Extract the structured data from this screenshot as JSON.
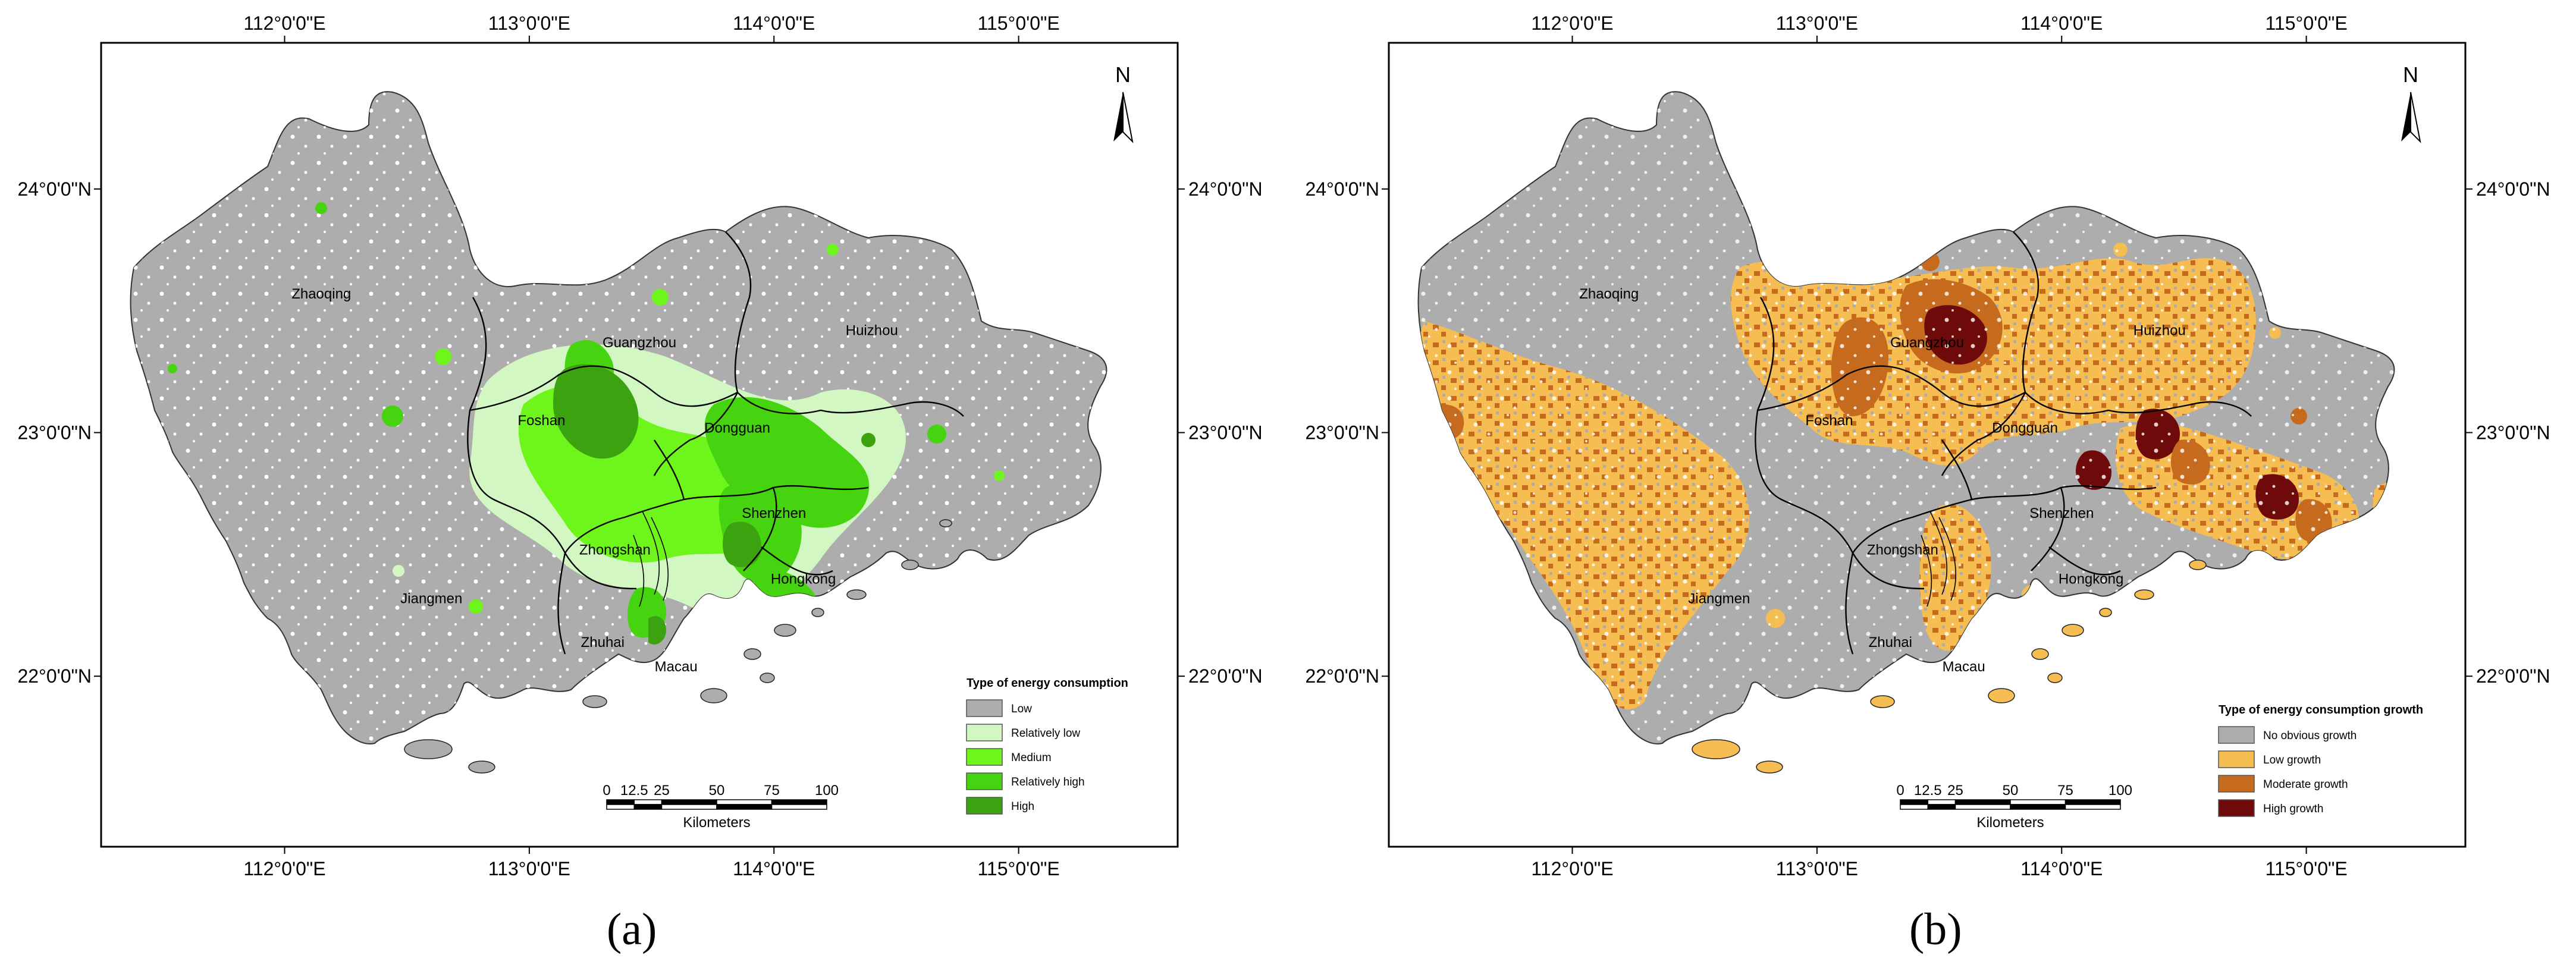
{
  "panels": [
    {
      "label": "(a)",
      "legend_title": "Type of energy consumption",
      "legend_items": [
        {
          "label": "Low",
          "color": "#adadad"
        },
        {
          "label": "Relatively low",
          "color": "#d3f7c3"
        },
        {
          "label": "Medium",
          "color": "#6ef51c"
        },
        {
          "label": "Relatively high",
          "color": "#45d40f"
        },
        {
          "label": "High",
          "color": "#3ba30f"
        }
      ],
      "cities": [
        {
          "name": "Zhaoqing",
          "lon": 112.15,
          "lat": 23.55
        },
        {
          "name": "Guangzhou",
          "lon": 113.45,
          "lat": 23.35
        },
        {
          "name": "Huizhou",
          "lon": 114.4,
          "lat": 23.4
        },
        {
          "name": "Foshan",
          "lon": 113.05,
          "lat": 23.03
        },
        {
          "name": "Dongguan",
          "lon": 113.85,
          "lat": 23.0
        },
        {
          "name": "Shenzhen",
          "lon": 114.0,
          "lat": 22.65
        },
        {
          "name": "Zhongshan",
          "lon": 113.35,
          "lat": 22.5
        },
        {
          "name": "Jiangmen",
          "lon": 112.6,
          "lat": 22.3
        },
        {
          "name": "Hongkong",
          "lon": 114.12,
          "lat": 22.38
        },
        {
          "name": "Zhuhai",
          "lon": 113.3,
          "lat": 22.12
        },
        {
          "name": "Macau",
          "lon": 113.6,
          "lat": 22.02
        }
      ]
    },
    {
      "label": "(b)",
      "legend_title": "Type of energy consumption growth",
      "legend_items": [
        {
          "label": "No obvious growth",
          "color": "#adadad"
        },
        {
          "label": "Low growth",
          "color": "#f5bd52"
        },
        {
          "label": "Moderate growth",
          "color": "#c66a1e"
        },
        {
          "label": "High growth",
          "color": "#6e0a0a"
        }
      ],
      "cities": [
        {
          "name": "Zhaoqing",
          "lon": 112.15,
          "lat": 23.55
        },
        {
          "name": "Guangzhou",
          "lon": 113.45,
          "lat": 23.35
        },
        {
          "name": "Huizhou",
          "lon": 114.4,
          "lat": 23.4
        },
        {
          "name": "Foshan",
          "lon": 113.05,
          "lat": 23.03
        },
        {
          "name": "Dongguan",
          "lon": 113.85,
          "lat": 23.0
        },
        {
          "name": "Shenzhen",
          "lon": 114.0,
          "lat": 22.65
        },
        {
          "name": "Zhongshan",
          "lon": 113.35,
          "lat": 22.5
        },
        {
          "name": "Jiangmen",
          "lon": 112.6,
          "lat": 22.3
        },
        {
          "name": "Hongkong",
          "lon": 114.12,
          "lat": 22.38
        },
        {
          "name": "Zhuhai",
          "lon": 113.3,
          "lat": 22.12
        },
        {
          "name": "Macau",
          "lon": 113.6,
          "lat": 22.02
        }
      ]
    }
  ],
  "axes": {
    "lon_ticks": [
      {
        "value": 112,
        "label": "112°0'0\"E"
      },
      {
        "value": 113,
        "label": "113°0'0\"E"
      },
      {
        "value": 114,
        "label": "114°0'0\"E"
      },
      {
        "value": 115,
        "label": "115°0'0\"E"
      }
    ],
    "lat_ticks": [
      {
        "value": 24,
        "label": "24°0'0\"N"
      },
      {
        "value": 23,
        "label": "23°0'0\"N"
      },
      {
        "value": 22,
        "label": "22°0'0\"N"
      }
    ],
    "lon_range": [
      111.25,
      115.65
    ],
    "lat_range": [
      21.3,
      24.6
    ]
  },
  "north_arrow": "N",
  "north_arrow_icon": "north-arrow-icon",
  "scale_bar": {
    "ticks": [
      "0",
      "12.5",
      "25",
      "50",
      "75",
      "100"
    ],
    "km_values": [
      0,
      12.5,
      25,
      50,
      75,
      100
    ],
    "unit": "Kilometers"
  }
}
